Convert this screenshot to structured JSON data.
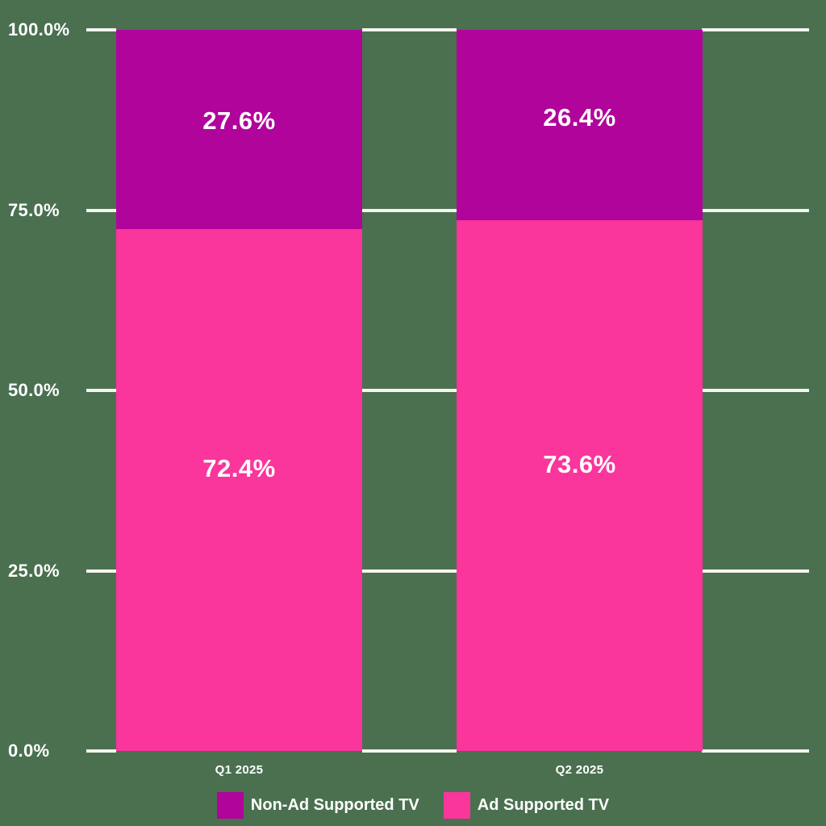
{
  "background_color": "#4A7050",
  "grid_color": "#F5F5F0",
  "text_color": "#FFFFFF",
  "chart_data": {
    "type": "bar",
    "stacked": true,
    "title": "",
    "xlabel": "",
    "ylabel": "",
    "categories": [
      "Q1 2025",
      "Q2 2025"
    ],
    "series": [
      {
        "name": "Ad Supported TV",
        "color": "#FA359B",
        "values": [
          72.4,
          73.6
        ],
        "value_labels": [
          "72.4%",
          "73.6%"
        ]
      },
      {
        "name": "Non-Ad Supported TV",
        "color": "#B0049B",
        "values": [
          27.6,
          26.4
        ],
        "value_labels": [
          "27.6%",
          "26.4%"
        ]
      }
    ],
    "ylim": [
      0,
      100
    ],
    "yticks": [
      {
        "value": 100,
        "label": "100.0%"
      },
      {
        "value": 75,
        "label": "75.0%"
      },
      {
        "value": 50,
        "label": "50.0%"
      },
      {
        "value": 25,
        "label": "25.0%"
      },
      {
        "value": 0,
        "label": "0.0%"
      }
    ],
    "grid": true,
    "legend_position": "bottom",
    "legend": [
      {
        "label": "Non-Ad Supported TV",
        "color": "#B0049B"
      },
      {
        "label": "Ad Supported TV",
        "color": "#FA359B"
      }
    ]
  }
}
